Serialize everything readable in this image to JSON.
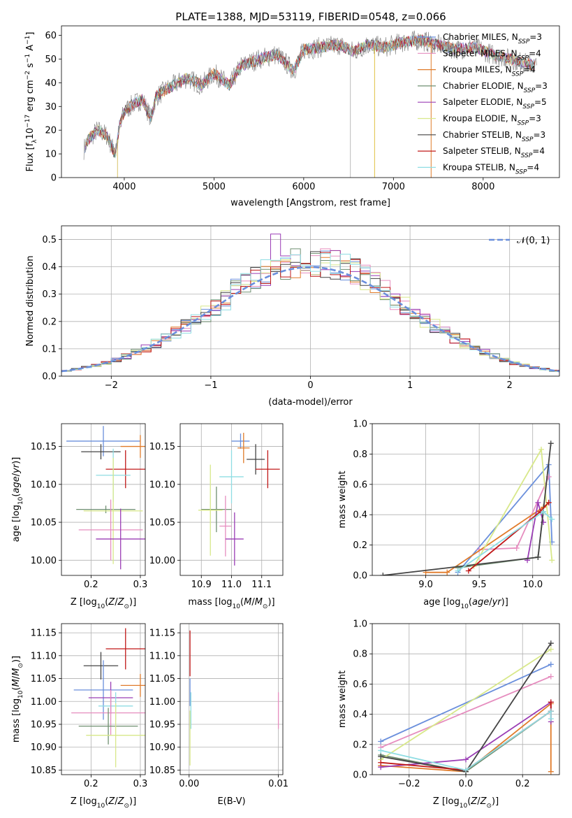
{
  "figure_title": "PLATE=1388, MJD=53119, FIBERID=0548, z=0.066",
  "colors": {
    "Chabrier MILES": "#6a8fdc",
    "Salpeter MILES": "#e68dbf",
    "Kroupa MILES": "#e07b2a",
    "Chabrier ELODIE": "#6f8f70",
    "Salpeter ELODIE": "#9a3db5",
    "Kroupa ELODIE": "#d8e88a",
    "Chabrier STELIB": "#444444",
    "Salpeter STELIB": "#c01818",
    "Kroupa STELIB": "#8fdde3"
  },
  "chart_data": [
    {
      "id": "spectrum",
      "type": "line",
      "title": "PLATE=1388, MJD=53119, FIBERID=0548, z=0.066",
      "xlabel": "wavelength [Angstrom, rest frame]",
      "ylabel": "Flux [f_λ 10^-17 erg cm^-2 s^-1 A^-1]",
      "xlim": [
        3300,
        8850
      ],
      "ylim": [
        0,
        64
      ],
      "xticks": [
        4000,
        5000,
        6000,
        7000,
        8000
      ],
      "yticks": [
        0,
        10,
        20,
        30,
        40,
        50,
        60
      ],
      "legend_position": "top-right",
      "legend": [
        {
          "name": "Chabrier MILES",
          "nssp": "3"
        },
        {
          "name": "Salpeter MILES",
          "nssp": "4"
        },
        {
          "name": "Kroupa MILES",
          "nssp": "4"
        },
        {
          "name": "Chabrier ELODIE",
          "nssp": "3"
        },
        {
          "name": "Salpeter ELODIE",
          "nssp": "5"
        },
        {
          "name": "Kroupa ELODIE",
          "nssp": "3"
        },
        {
          "name": "Chabrier STELIB",
          "nssp": "3"
        },
        {
          "name": "Salpeter STELIB",
          "nssp": "4"
        },
        {
          "name": "Kroupa STELIB",
          "nssp": "4"
        }
      ],
      "envelope": [
        [
          3550,
          12
        ],
        [
          3600,
          16
        ],
        [
          3700,
          20
        ],
        [
          3800,
          18
        ],
        [
          3850,
          14
        ],
        [
          3900,
          10
        ],
        [
          3950,
          22
        ],
        [
          4000,
          28
        ],
        [
          4100,
          31
        ],
        [
          4200,
          33
        ],
        [
          4300,
          25
        ],
        [
          4350,
          34
        ],
        [
          4500,
          38
        ],
        [
          4700,
          42
        ],
        [
          4861,
          39
        ],
        [
          5000,
          44
        ],
        [
          5175,
          39
        ],
        [
          5300,
          47
        ],
        [
          5500,
          50
        ],
        [
          5700,
          52
        ],
        [
          5890,
          45
        ],
        [
          6000,
          54
        ],
        [
          6200,
          55
        ],
        [
          6400,
          56
        ],
        [
          6563,
          53
        ],
        [
          6700,
          56
        ],
        [
          6900,
          55
        ],
        [
          7100,
          57
        ],
        [
          7300,
          58
        ],
        [
          7500,
          56
        ],
        [
          7700,
          54
        ],
        [
          7900,
          55
        ],
        [
          8100,
          52
        ],
        [
          8300,
          50
        ],
        [
          8500,
          48
        ],
        [
          8600,
          47
        ]
      ]
    },
    {
      "id": "residuals",
      "type": "step",
      "xlabel": "(data-model)/error",
      "ylabel": "Normed distribution",
      "xlim": [
        -2.5,
        2.5
      ],
      "ylim": [
        0,
        0.55
      ],
      "xticks": [
        -2,
        -1,
        0,
        1,
        2
      ],
      "yticks": [
        0.0,
        0.1,
        0.2,
        0.3,
        0.4,
        0.5
      ],
      "legend_position": "top-right",
      "reference_curve": "𝒩(0, 1)",
      "bin_width": 0.1,
      "peak_bin": {
        "x": -0.35,
        "value": 0.52
      }
    },
    {
      "id": "age_vs_Z",
      "type": "errorbar",
      "xlabel": "Z [log10(Z/Z☉)]",
      "ylabel": "age [log10(age/yr)]",
      "xlim": [
        0.14,
        0.31
      ],
      "ylim": [
        9.98,
        10.18
      ],
      "xticks": [
        0.2,
        0.3
      ],
      "yticks": [
        10.0,
        10.05,
        10.1,
        10.15
      ],
      "points": [
        {
          "series": "Chabrier MILES",
          "x": 0.225,
          "y": 10.157,
          "xerr": 0.075,
          "yerr": 0.02
        },
        {
          "series": "Kroupa MILES",
          "x": 0.3,
          "y": 10.15,
          "xerr": 0.04,
          "yerr": 0.015
        },
        {
          "series": "Chabrier STELIB",
          "x": 0.22,
          "y": 10.143,
          "xerr": 0.04,
          "yerr": 0.01
        },
        {
          "series": "Salpeter STELIB",
          "x": 0.27,
          "y": 10.12,
          "xerr": 0.04,
          "yerr": 0.025
        },
        {
          "series": "Kroupa STELIB",
          "x": 0.245,
          "y": 10.112,
          "xerr": 0.035,
          "yerr": 0.035
        },
        {
          "series": "Chabrier ELODIE",
          "x": 0.23,
          "y": 10.067,
          "xerr": 0.06,
          "yerr": 0.005
        },
        {
          "series": "Kroupa ELODIE",
          "x": 0.245,
          "y": 10.065,
          "xerr": 0.06,
          "yerr": 0.07
        },
        {
          "series": "Salpeter MILES",
          "x": 0.24,
          "y": 10.04,
          "xerr": 0.065,
          "yerr": 0.04
        },
        {
          "series": "Salpeter ELODIE",
          "x": 0.26,
          "y": 10.028,
          "xerr": 0.05,
          "yerr": 0.04
        }
      ]
    },
    {
      "id": "age_vs_mass",
      "type": "errorbar",
      "xlabel": "mass [log10(M/M☉)]",
      "ylabel": "",
      "xlim": [
        10.83,
        11.17
      ],
      "ylim": [
        9.98,
        10.18
      ],
      "xticks": [
        10.9,
        11.0,
        11.1
      ],
      "yticks": [
        10.0,
        10.05,
        10.1,
        10.15
      ],
      "points": [
        {
          "series": "Chabrier MILES",
          "x": 11.03,
          "y": 10.157,
          "xerr": 0.03,
          "yerr": 0.01
        },
        {
          "series": "Kroupa MILES",
          "x": 11.04,
          "y": 10.148,
          "xerr": 0.02,
          "yerr": 0.02
        },
        {
          "series": "Chabrier STELIB",
          "x": 11.08,
          "y": 10.133,
          "xerr": 0.03,
          "yerr": 0.02
        },
        {
          "series": "Salpeter STELIB",
          "x": 11.12,
          "y": 10.12,
          "xerr": 0.04,
          "yerr": 0.025
        },
        {
          "series": "Kroupa STELIB",
          "x": 11.0,
          "y": 10.11,
          "xerr": 0.04,
          "yerr": 0.035
        },
        {
          "series": "Chabrier ELODIE",
          "x": 10.95,
          "y": 10.067,
          "xerr": 0.05,
          "yerr": 0.03
        },
        {
          "series": "Kroupa ELODIE",
          "x": 10.93,
          "y": 10.066,
          "xerr": 0.04,
          "yerr": 0.06
        },
        {
          "series": "Salpeter MILES",
          "x": 10.98,
          "y": 10.045,
          "xerr": 0.02,
          "yerr": 0.04
        },
        {
          "series": "Salpeter ELODIE",
          "x": 11.01,
          "y": 10.028,
          "xerr": 0.03,
          "yerr": 0.035
        }
      ]
    },
    {
      "id": "weights_vs_age",
      "type": "line",
      "xlabel": "age [log10(age/yr)]",
      "ylabel": "mass weight",
      "xlim": [
        8.5,
        10.25
      ],
      "ylim": [
        0,
        1
      ],
      "xticks": [
        9.0,
        9.5,
        10.0
      ],
      "yticks": [
        0.0,
        0.2,
        0.4,
        0.6,
        0.8,
        1.0
      ],
      "series": [
        {
          "name": "Chabrier MILES",
          "points": [
            [
              9.3,
              0.02
            ],
            [
              10.15,
              0.73
            ],
            [
              10.18,
              0.22
            ]
          ]
        },
        {
          "name": "Salpeter MILES",
          "points": [
            [
              9.5,
              0.17
            ],
            [
              9.85,
              0.18
            ],
            [
              10.15,
              0.65
            ]
          ]
        },
        {
          "name": "Kroupa MILES",
          "points": [
            [
              9.0,
              0.02
            ],
            [
              9.2,
              0.02
            ],
            [
              10.1,
              0.45
            ],
            [
              10.15,
              0.48
            ]
          ]
        },
        {
          "name": "Chabrier ELODIE",
          "points": [
            [
              9.3,
              0.05
            ],
            [
              10.05,
              0.12
            ],
            [
              10.1,
              0.42
            ]
          ]
        },
        {
          "name": "Salpeter ELODIE",
          "points": [
            [
              9.95,
              0.1
            ],
            [
              10.05,
              0.48
            ],
            [
              10.1,
              0.35
            ]
          ]
        },
        {
          "name": "Kroupa ELODIE",
          "points": [
            [
              9.45,
              0.06
            ],
            [
              10.08,
              0.83
            ],
            [
              10.18,
              0.1
            ]
          ]
        },
        {
          "name": "Chabrier STELIB",
          "points": [
            [
              8.6,
              0.0
            ],
            [
              10.05,
              0.12
            ],
            [
              10.17,
              0.87
            ]
          ]
        },
        {
          "name": "Salpeter STELIB",
          "points": [
            [
              9.4,
              0.03
            ],
            [
              10.07,
              0.42
            ],
            [
              10.15,
              0.48
            ]
          ]
        },
        {
          "name": "Kroupa STELIB",
          "points": [
            [
              9.3,
              0.03
            ],
            [
              10.1,
              0.42
            ],
            [
              10.18,
              0.37
            ]
          ]
        }
      ]
    },
    {
      "id": "mass_vs_Z",
      "type": "errorbar",
      "xlabel": "Z [log10(Z/Z☉)]",
      "ylabel": "mass [log10(M/M☉)]",
      "xlim": [
        0.14,
        0.31
      ],
      "ylim": [
        10.84,
        11.17
      ],
      "xticks": [
        0.2,
        0.3
      ],
      "yticks": [
        10.85,
        10.9,
        10.95,
        11.0,
        11.05,
        11.1,
        11.15
      ],
      "points": [
        {
          "series": "Salpeter STELIB",
          "x": 0.27,
          "y": 11.115,
          "xerr": 0.04,
          "yerr": 0.045
        },
        {
          "series": "Chabrier STELIB",
          "x": 0.22,
          "y": 11.078,
          "xerr": 0.035,
          "yerr": 0.03
        },
        {
          "series": "Kroupa MILES",
          "x": 0.3,
          "y": 11.035,
          "xerr": 0.04,
          "yerr": 0.025
        },
        {
          "series": "Chabrier MILES",
          "x": 0.225,
          "y": 11.025,
          "xerr": 0.06,
          "yerr": 0.065
        },
        {
          "series": "Salpeter ELODIE",
          "x": 0.24,
          "y": 11.008,
          "xerr": 0.045,
          "yerr": 0.035
        },
        {
          "series": "Kroupa STELIB",
          "x": 0.25,
          "y": 10.99,
          "xerr": 0.035,
          "yerr": 0.03
        },
        {
          "series": "Salpeter MILES",
          "x": 0.24,
          "y": 10.975,
          "xerr": 0.08,
          "yerr": 0.05
        },
        {
          "series": "Chabrier ELODIE",
          "x": 0.235,
          "y": 10.946,
          "xerr": 0.06,
          "yerr": 0.04
        },
        {
          "series": "Kroupa ELODIE",
          "x": 0.25,
          "y": 10.926,
          "xerr": 0.06,
          "yerr": 0.07
        }
      ]
    },
    {
      "id": "mass_vs_ebv",
      "type": "errorbar",
      "xlabel": "E(B-V)",
      "ylabel": "",
      "xlim": [
        -0.001,
        0.0105
      ],
      "ylim": [
        10.84,
        11.17
      ],
      "xticks": [
        0.0,
        0.01
      ],
      "yticks": [
        10.85,
        10.9,
        10.95,
        11.0,
        11.05,
        11.1,
        11.15
      ],
      "points": [
        {
          "series": "Salpeter STELIB",
          "x": 0.0001,
          "y": 11.105,
          "xerr": 0,
          "yerr": 0.05
        },
        {
          "series": "Chabrier MILES",
          "x": 0.0001,
          "y": 11.02,
          "xerr": 0,
          "yerr": 0.03
        },
        {
          "series": "Kroupa STELIB",
          "x": 0.0002,
          "y": 10.98,
          "xerr": 0,
          "yerr": 0.04
        },
        {
          "series": "Kroupa ELODIE",
          "x": 0.0001,
          "y": 10.92,
          "xerr": 0,
          "yerr": 0.06
        },
        {
          "series": "Salpeter MILES",
          "x": 0.01,
          "y": 10.98,
          "xerr": 0,
          "yerr": 0.04
        }
      ]
    },
    {
      "id": "weights_vs_Z",
      "type": "line",
      "xlabel": "Z [log10(Z/Z☉)]",
      "ylabel": "mass weight",
      "xlim": [
        -0.33,
        0.33
      ],
      "ylim": [
        0,
        1
      ],
      "xticks": [
        -0.2,
        0.0,
        0.2
      ],
      "yticks": [
        0.0,
        0.2,
        0.4,
        0.6,
        0.8,
        1.0
      ],
      "series": [
        {
          "name": "Chabrier MILES",
          "points": [
            [
              -0.3,
              0.22
            ],
            [
              0.3,
              0.73
            ]
          ]
        },
        {
          "name": "Salpeter MILES",
          "points": [
            [
              -0.3,
              0.18
            ],
            [
              0.3,
              0.65
            ]
          ]
        },
        {
          "name": "Kroupa MILES",
          "points": [
            [
              -0.3,
              0.06
            ],
            [
              0.0,
              0.02
            ],
            [
              0.3,
              0.47
            ],
            [
              0.3,
              0.02
            ]
          ]
        },
        {
          "name": "Chabrier ELODIE",
          "points": [
            [
              -0.3,
              0.13
            ],
            [
              0.0,
              0.02
            ],
            [
              0.3,
              0.42
            ]
          ]
        },
        {
          "name": "Salpeter ELODIE",
          "points": [
            [
              -0.3,
              0.05
            ],
            [
              0.0,
              0.1
            ],
            [
              0.3,
              0.48
            ],
            [
              0.3,
              0.35
            ]
          ]
        },
        {
          "name": "Kroupa ELODIE",
          "points": [
            [
              -0.3,
              0.1
            ],
            [
              0.3,
              0.83
            ]
          ]
        },
        {
          "name": "Chabrier STELIB",
          "points": [
            [
              -0.3,
              0.12
            ],
            [
              0.0,
              0.02
            ],
            [
              0.3,
              0.87
            ]
          ]
        },
        {
          "name": "Salpeter STELIB",
          "points": [
            [
              -0.3,
              0.08
            ],
            [
              0.0,
              0.03
            ],
            [
              0.3,
              0.42
            ],
            [
              0.3,
              0.48
            ]
          ]
        },
        {
          "name": "Kroupa STELIB",
          "points": [
            [
              -0.3,
              0.16
            ],
            [
              0.0,
              0.03
            ],
            [
              0.3,
              0.42
            ],
            [
              0.3,
              0.37
            ]
          ]
        }
      ]
    }
  ]
}
